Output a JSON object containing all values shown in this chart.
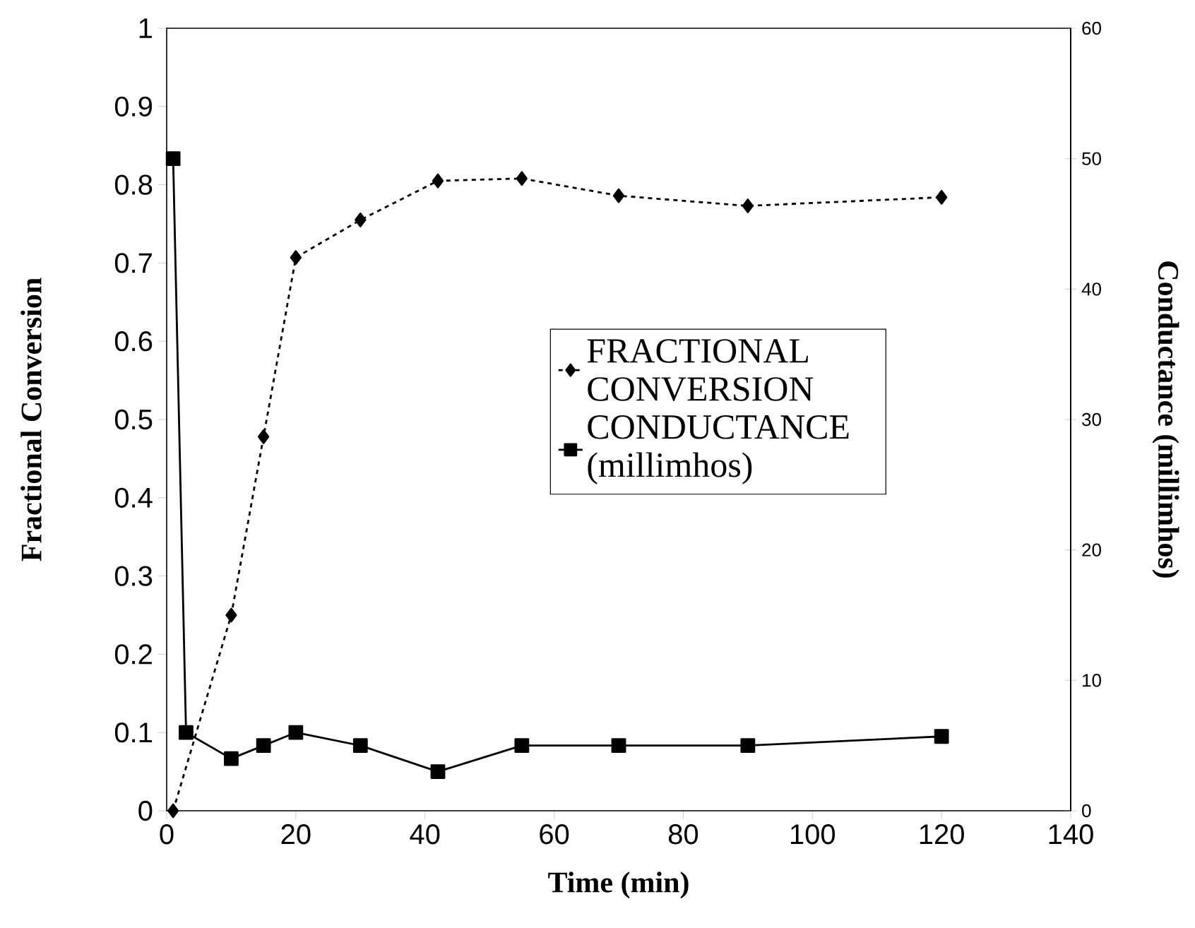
{
  "chart_data": {
    "type": "line",
    "xlabel": "Time (min)",
    "ylabel": "Fractional Conversion",
    "y2label": "Conductance (millimhos)",
    "xlim": [
      0,
      140
    ],
    "xticks": [
      0,
      20,
      40,
      60,
      80,
      100,
      120,
      140
    ],
    "ylim": [
      0,
      1
    ],
    "yticks": [
      0,
      0.1,
      0.2,
      0.3,
      0.4,
      0.5,
      0.6,
      0.7,
      0.8,
      0.9,
      1
    ],
    "y2lim": [
      0,
      60
    ],
    "y2ticks": [
      0,
      10,
      20,
      30,
      40,
      50,
      60
    ],
    "legend": "right",
    "series": [
      {
        "name": "FRACTIONAL CONVERSION",
        "color": "#000000",
        "marker": "diamond",
        "line_style": "dashed",
        "x": [
          1,
          10,
          15,
          20,
          30,
          42,
          55,
          70,
          90,
          120
        ],
        "values": [
          0,
          0.25,
          0.478,
          0.707,
          0.755,
          0.805,
          0.808,
          0.786,
          0.773,
          0.784
        ]
      },
      {
        "name": "CONDUCTANCE (millimhos)",
        "color": "#000000",
        "marker": "square",
        "line_style": "solid",
        "axis": "y2",
        "x": [
          1,
          3,
          10,
          15,
          20,
          30,
          42,
          55,
          70,
          90,
          120
        ],
        "values": [
          50,
          6,
          4,
          5,
          6,
          5,
          3,
          5,
          5,
          5,
          5.7
        ]
      }
    ]
  }
}
